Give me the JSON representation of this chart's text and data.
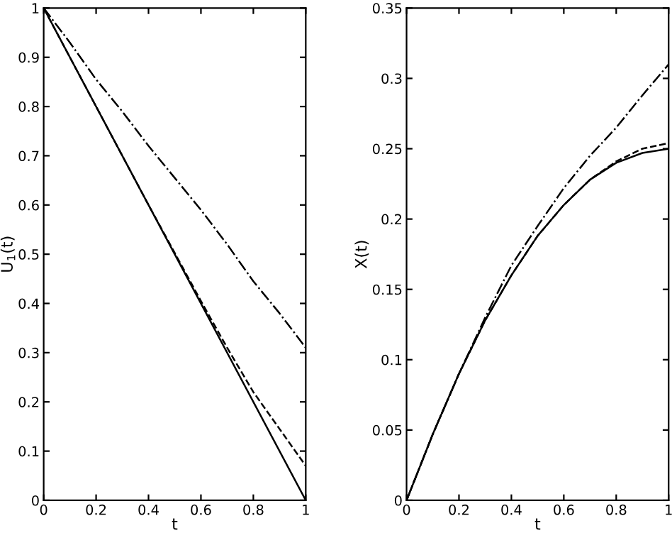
{
  "chart_data": [
    {
      "type": "line",
      "xlabel": "t",
      "ylabel": "U$_{1}$(t)",
      "xlim": [
        0,
        1
      ],
      "ylim": [
        0,
        1
      ],
      "xticks": [
        0,
        0.2,
        0.4,
        0.6,
        0.8,
        1
      ],
      "yticks": [
        0,
        0.1,
        0.2,
        0.3,
        0.4,
        0.5,
        0.6,
        0.7,
        0.8,
        0.9,
        1
      ],
      "grid": false,
      "legend": false,
      "series": [
        {
          "color": "#000000",
          "line_style": "solid",
          "x": [
            0,
            1
          ],
          "values": [
            1,
            0
          ]
        },
        {
          "color": "#000000",
          "line_style": "dashed",
          "x": [
            0,
            0.2,
            0.4,
            0.6,
            0.7,
            0.8,
            0.9,
            1
          ],
          "values": [
            1,
            0.8,
            0.6,
            0.405,
            0.31,
            0.22,
            0.145,
            0.07
          ]
        },
        {
          "color": "#000000",
          "line_style": "dashdot",
          "x": [
            0,
            0.1,
            0.2,
            0.3,
            0.4,
            0.5,
            0.6,
            0.7,
            0.8,
            0.9,
            1
          ],
          "values": [
            1,
            0.93,
            0.855,
            0.79,
            0.72,
            0.655,
            0.59,
            0.52,
            0.445,
            0.38,
            0.31
          ]
        }
      ]
    },
    {
      "type": "line",
      "xlabel": "t",
      "ylabel": "X(t)",
      "xlim": [
        0,
        1
      ],
      "ylim": [
        0,
        0.35
      ],
      "xticks": [
        0,
        0.2,
        0.4,
        0.6,
        0.8,
        1
      ],
      "yticks": [
        0,
        0.05,
        0.1,
        0.15,
        0.2,
        0.25,
        0.3,
        0.35
      ],
      "grid": false,
      "legend": false,
      "series": [
        {
          "color": "#000000",
          "line_style": "solid",
          "x": [
            0,
            0.1,
            0.2,
            0.3,
            0.4,
            0.5,
            0.6,
            0.7,
            0.8,
            0.9,
            1
          ],
          "values": [
            0,
            0.047,
            0.09,
            0.128,
            0.16,
            0.188,
            0.21,
            0.228,
            0.24,
            0.247,
            0.25
          ]
        },
        {
          "color": "#000000",
          "line_style": "dashed",
          "x": [
            0,
            0.1,
            0.2,
            0.3,
            0.4,
            0.5,
            0.6,
            0.7,
            0.8,
            0.9,
            1
          ],
          "values": [
            0,
            0.047,
            0.09,
            0.128,
            0.16,
            0.188,
            0.21,
            0.228,
            0.241,
            0.25,
            0.254
          ]
        },
        {
          "color": "#000000",
          "line_style": "dashdot",
          "x": [
            0,
            0.1,
            0.2,
            0.3,
            0.4,
            0.5,
            0.6,
            0.7,
            0.8,
            0.9,
            1
          ],
          "values": [
            0,
            0.047,
            0.09,
            0.13,
            0.167,
            0.195,
            0.222,
            0.245,
            0.265,
            0.288,
            0.31
          ]
        }
      ]
    }
  ]
}
